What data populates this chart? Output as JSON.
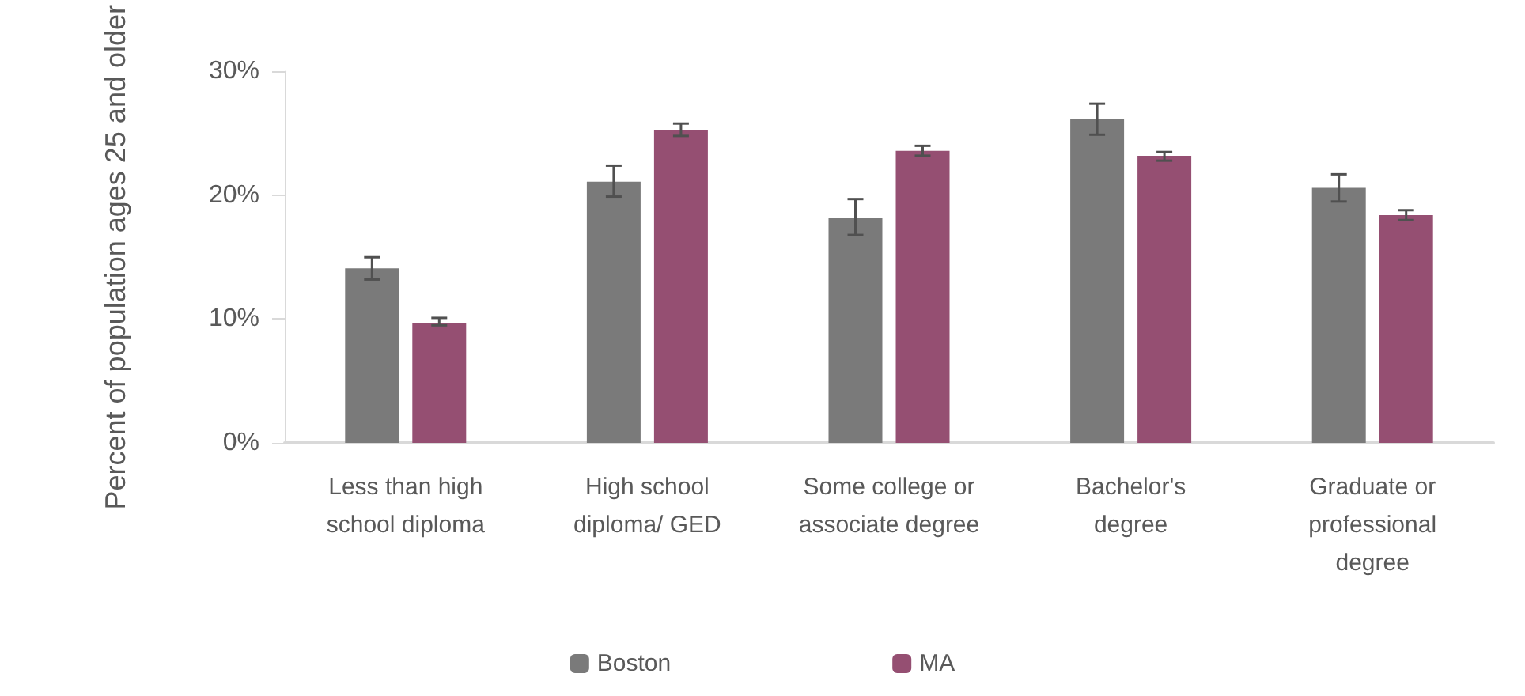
{
  "chart_data": {
    "type": "bar",
    "ylabel": "Percent of population ages 25 and older",
    "categories": [
      "Less than high school diploma",
      "High school diploma/ GED",
      "Some college or associate degree",
      "Bachelor's degree",
      "Graduate or professional degree"
    ],
    "series": [
      {
        "name": "Boston",
        "color": "#7a7a7a",
        "values": [
          14.1,
          21.1,
          18.2,
          26.2,
          20.6
        ],
        "errors": [
          [
            13.2,
            15.0
          ],
          [
            19.9,
            22.4
          ],
          [
            16.8,
            19.7
          ],
          [
            24.9,
            27.4
          ],
          [
            19.5,
            21.7
          ]
        ]
      },
      {
        "name": "MA",
        "color": "#954f72",
        "values": [
          9.7,
          25.3,
          23.6,
          23.2,
          18.4
        ],
        "errors": [
          [
            9.5,
            10.1
          ],
          [
            24.8,
            25.8
          ],
          [
            23.2,
            24.0
          ],
          [
            22.8,
            23.5
          ],
          [
            18.0,
            18.8
          ]
        ]
      }
    ],
    "ylim": [
      0,
      30
    ],
    "yticks": [
      {
        "value": 0,
        "label": "0%"
      },
      {
        "value": 10,
        "label": "10%"
      },
      {
        "value": 20,
        "label": "20%"
      },
      {
        "value": 30,
        "label": "30%"
      }
    ],
    "grid": false,
    "legend": "bottom"
  }
}
